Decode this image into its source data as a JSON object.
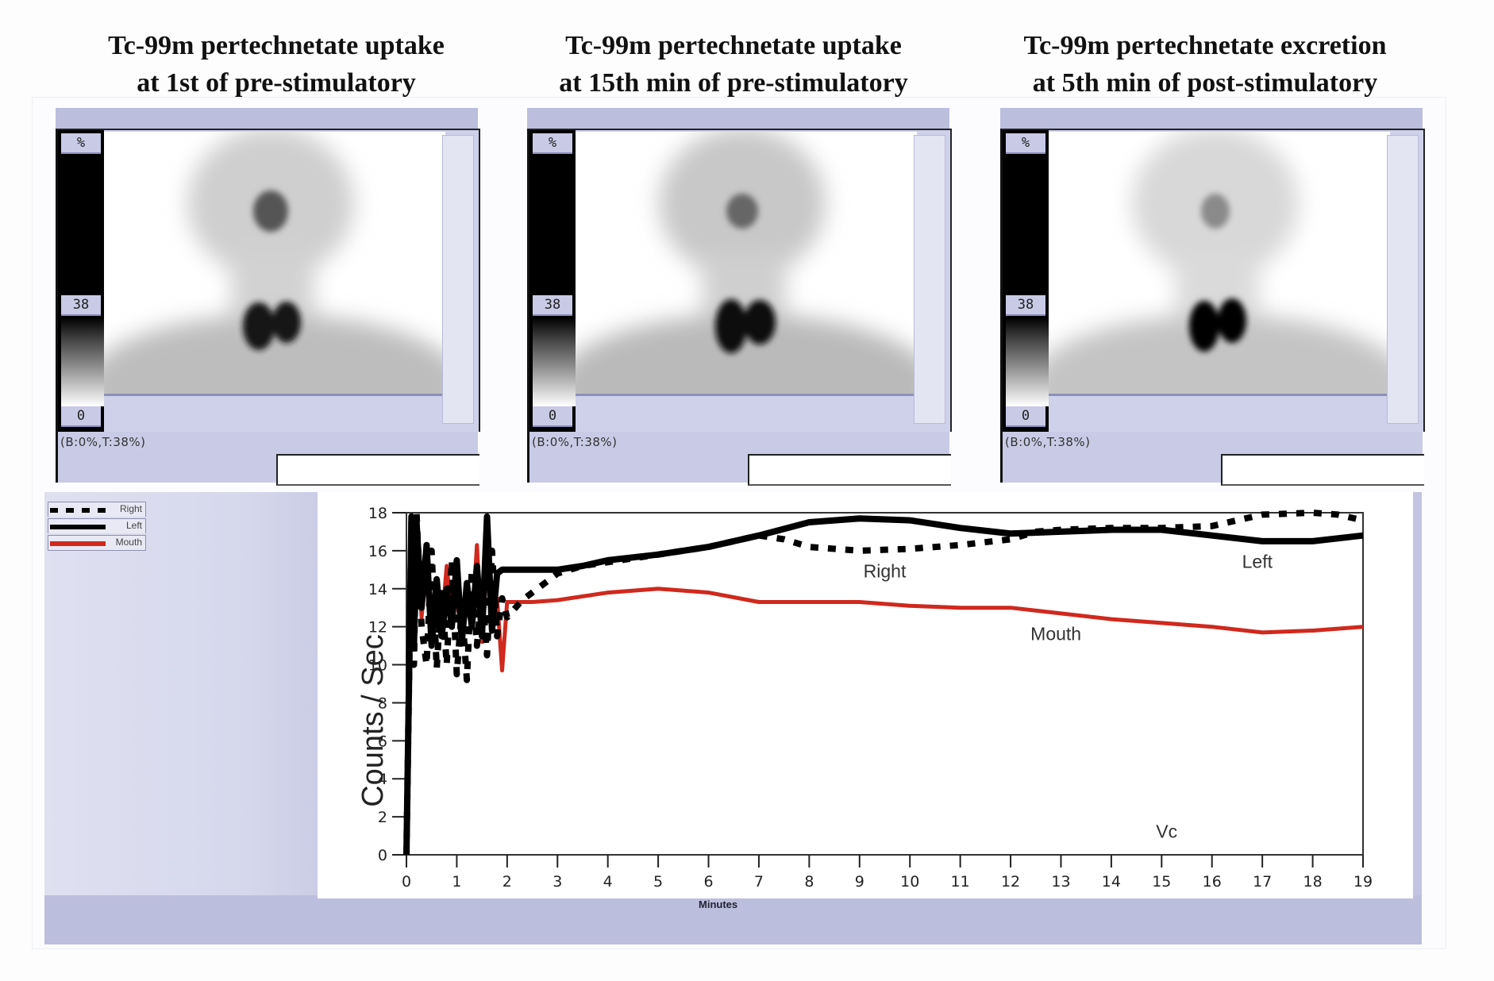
{
  "panels": [
    {
      "title_line1": "Tc-99m pertechnetate uptake",
      "title_line2": "at 1st of pre-stimulatory",
      "scale_top": "%",
      "scale_mid": "38",
      "scale_bottom": "0",
      "status": "(B:0%,T:38%)"
    },
    {
      "title_line1": "Tc-99m pertechnetate uptake",
      "title_line2": "at 15th min of pre-stimulatory",
      "scale_top": "%",
      "scale_mid": "38",
      "scale_bottom": "0",
      "status": "(B:0%,T:38%)"
    },
    {
      "title_line1": "Tc-99m pertechnetate excretion",
      "title_line2": "at 5th min of post-stimulatory",
      "scale_top": "%",
      "scale_mid": "38",
      "scale_bottom": "0",
      "status": "(B:0%,T:38%)"
    }
  ],
  "colors": {
    "right": "#000000",
    "left": "#000000",
    "mouth": "#d0291e",
    "panel_bg": "#c2c4e1"
  },
  "chart_data": {
    "type": "line",
    "title": "",
    "xlabel": "Minutes",
    "ylabel": "Counts / Sec",
    "xlim": [
      0,
      19
    ],
    "ylim": [
      0,
      18
    ],
    "xticks": [
      "0",
      "1",
      "2",
      "3",
      "4",
      "5",
      "6",
      "7",
      "8",
      "9",
      "10",
      "11",
      "12",
      "13",
      "14",
      "15",
      "16",
      "17",
      "18",
      "19"
    ],
    "yticks": [
      "0",
      "2",
      "4",
      "6",
      "8",
      "10",
      "12",
      "14",
      "16",
      "18"
    ],
    "grid": false,
    "legend": {
      "position": "top-left",
      "entries": [
        "Right",
        "Left",
        "Mouth"
      ]
    },
    "annotations": [
      {
        "text": "Right",
        "x": 9.5,
        "y": 14.6
      },
      {
        "text": "Left",
        "x": 16.9,
        "y": 15.1
      },
      {
        "text": "Mouth",
        "x": 12.9,
        "y": 11.3
      },
      {
        "text": "Vc",
        "x": 15.1,
        "y": 0.9
      }
    ],
    "series": [
      {
        "name": "Right",
        "style": "dotted",
        "x": [
          0,
          0.1,
          0.15,
          0.2,
          0.3,
          0.4,
          0.5,
          0.6,
          0.7,
          0.8,
          0.9,
          1.0,
          1.1,
          1.2,
          1.3,
          1.4,
          1.5,
          1.6,
          1.7,
          1.8,
          1.9,
          2.0,
          2.3,
          2.6,
          3.0,
          3.5,
          4.0,
          5.0,
          6.0,
          7.0,
          7.5,
          8.0,
          9.0,
          10.0,
          11.0,
          12.0,
          12.5,
          13.0,
          14.0,
          15.0,
          16.0,
          16.5,
          17.0,
          18.0,
          18.5,
          19.0
        ],
        "y": [
          0,
          17.5,
          10,
          18,
          12,
          10,
          16,
          9.8,
          14,
          10,
          15.5,
          9.5,
          13,
          9.2,
          15,
          11,
          14,
          10.5,
          16,
          11.5,
          13.5,
          12.5,
          13.4,
          14.0,
          14.8,
          15.2,
          15.4,
          15.8,
          16.2,
          16.8,
          16.6,
          16.2,
          16.0,
          16.1,
          16.3,
          16.6,
          17.0,
          17.1,
          17.2,
          17.2,
          17.3,
          17.6,
          17.9,
          18.0,
          17.9,
          17.6
        ]
      },
      {
        "name": "Left",
        "style": "solid",
        "x": [
          0,
          0.1,
          0.15,
          0.2,
          0.3,
          0.4,
          0.5,
          0.6,
          0.7,
          0.8,
          0.9,
          1.0,
          1.1,
          1.2,
          1.3,
          1.4,
          1.5,
          1.6,
          1.7,
          1.8,
          1.9,
          2.0,
          3.0,
          3.5,
          4.0,
          5.0,
          6.0,
          7.0,
          8.0,
          9.0,
          10.0,
          11.0,
          12.0,
          13.0,
          14.0,
          15.0,
          16.0,
          17.0,
          18.0,
          19.0
        ],
        "y": [
          0,
          17.8,
          11,
          17.5,
          13,
          16.3,
          11,
          14.5,
          11.5,
          14.0,
          12.0,
          15.5,
          11.2,
          14.3,
          12.0,
          15.2,
          11.5,
          17.8,
          11.8,
          14.8,
          15.0,
          15.0,
          15.0,
          15.2,
          15.5,
          15.8,
          16.2,
          16.8,
          17.5,
          17.7,
          17.6,
          17.2,
          16.9,
          17.0,
          17.1,
          17.1,
          16.8,
          16.5,
          16.5,
          16.8
        ]
      },
      {
        "name": "Mouth",
        "style": "solid",
        "x": [
          0,
          0.1,
          0.15,
          0.2,
          0.3,
          0.4,
          0.5,
          0.6,
          0.7,
          0.8,
          0.9,
          1.0,
          1.1,
          1.2,
          1.3,
          1.4,
          1.5,
          1.6,
          1.7,
          1.8,
          1.9,
          2.0,
          2.5,
          3.0,
          4.0,
          5.0,
          6.0,
          7.0,
          8.0,
          9.0,
          10.0,
          11.0,
          12.0,
          13.0,
          14.0,
          15.0,
          16.0,
          17.0,
          18.0,
          19.0
        ],
        "y": [
          0,
          16.5,
          12,
          17.5,
          12.5,
          15.0,
          11.5,
          13.5,
          12.0,
          15.2,
          12.5,
          13.5,
          11.5,
          13.0,
          12.0,
          16.3,
          11.2,
          15.5,
          12.0,
          13.5,
          9.7,
          13.3,
          13.3,
          13.4,
          13.8,
          14.0,
          13.8,
          13.3,
          13.3,
          13.3,
          13.1,
          13.0,
          13.0,
          12.7,
          12.4,
          12.2,
          12.0,
          11.7,
          11.8,
          12.0
        ]
      }
    ]
  }
}
